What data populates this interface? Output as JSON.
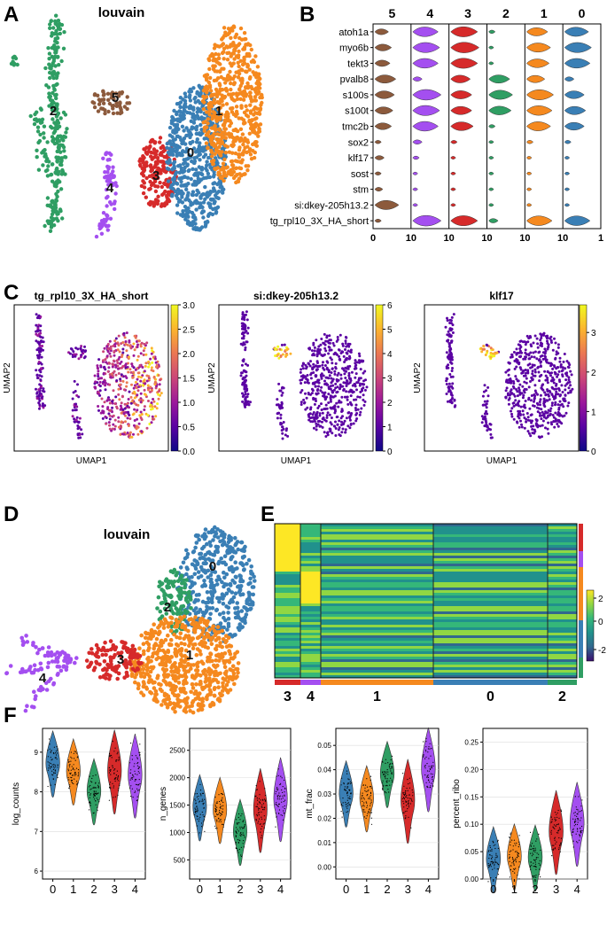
{
  "panel_letters": [
    "A",
    "B",
    "C",
    "D",
    "E",
    "F"
  ],
  "cluster_colors": {
    "0": "#3a7fb5",
    "1": "#f5891f",
    "2": "#2f9e63",
    "3": "#d62a2a",
    "4": "#a44ff0",
    "5": "#8c5a3c"
  },
  "chart_data": [
    {
      "panel": "A",
      "type": "scatter",
      "title": "louvain",
      "clusters": [
        "0",
        "1",
        "2",
        "3",
        "4",
        "5"
      ]
    },
    {
      "panel": "B",
      "type": "violin",
      "cluster_order": [
        "5",
        "4",
        "3",
        "2",
        "1",
        "0"
      ],
      "genes": [
        "atoh1a",
        "myo6b",
        "tekt3",
        "pvalb8",
        "s100s",
        "s100t",
        "tmc2b",
        "sox2",
        "klf17",
        "sost",
        "stm",
        "si:dkey-205h13.2",
        "tg_rpl10_3X_HA_short"
      ],
      "x_tick_labels": [
        "0",
        "10",
        "10",
        "10",
        "10",
        "10",
        "1"
      ],
      "expression_level": {
        "5": [
          0.35,
          0.45,
          0.4,
          0.6,
          0.55,
          0.5,
          0.45,
          0.1,
          0.2,
          0.1,
          0.15,
          0.7,
          0.1
        ],
        "4": [
          0.75,
          0.8,
          0.75,
          0.2,
          0.85,
          0.8,
          0.75,
          0.2,
          0.1,
          0.05,
          0.05,
          0.05,
          0.85
        ],
        "3": [
          0.8,
          0.85,
          0.8,
          0.55,
          0.6,
          0.6,
          0.65,
          0.1,
          0.05,
          0.05,
          0.05,
          0.05,
          0.8
        ],
        "2": [
          0.1,
          0.05,
          0.05,
          0.6,
          0.7,
          0.65,
          0.1,
          0.05,
          0.05,
          0.05,
          0.05,
          0.05,
          0.2
        ],
        "1": [
          0.6,
          0.7,
          0.65,
          0.5,
          0.8,
          0.75,
          0.7,
          0.1,
          0.05,
          0.05,
          0.05,
          0.05,
          0.75
        ],
        "0": [
          0.7,
          0.8,
          0.75,
          0.2,
          0.55,
          0.6,
          0.55,
          0.1,
          0.05,
          0.05,
          0.05,
          0.05,
          0.75
        ]
      }
    },
    {
      "panel": "C",
      "type": "scatter",
      "title": "tg_rpl10_3X_HA_short",
      "xlabel": "UMAP1",
      "ylabel": "UMAP2",
      "colorbar_ticks": [
        "0.0",
        "0.5",
        "1.0",
        "1.5",
        "2.0",
        "2.5",
        "3.0"
      ]
    },
    {
      "panel": "C",
      "type": "scatter",
      "title": "si:dkey-205h13.2",
      "xlabel": "UMAP1",
      "ylabel": "UMAP2",
      "colorbar_ticks": [
        "0",
        "1",
        "2",
        "3",
        "4",
        "5",
        "6"
      ]
    },
    {
      "panel": "C",
      "type": "scatter",
      "title": "klf17",
      "xlabel": "UMAP1",
      "ylabel": "UMAP2",
      "colorbar_ticks": [
        "0",
        "1",
        "2",
        "3"
      ]
    },
    {
      "panel": "D",
      "type": "scatter",
      "title": "louvain",
      "clusters": [
        "0",
        "1",
        "2",
        "3",
        "4"
      ]
    },
    {
      "panel": "E",
      "type": "heatmap",
      "group_labels": [
        "3",
        "4",
        "1",
        "0",
        "2"
      ],
      "colorbar_ticks": [
        "2",
        "0",
        "-2"
      ]
    },
    {
      "panel": "F",
      "type": "violin",
      "ylabel": "log_counts",
      "categories": [
        "0",
        "1",
        "2",
        "3",
        "4"
      ],
      "y_ticks": [
        "6",
        "7",
        "8",
        "9"
      ],
      "ylim": [
        5.8,
        9.6
      ],
      "median": [
        8.7,
        8.5,
        8.0,
        8.5,
        8.4
      ]
    },
    {
      "panel": "F",
      "type": "violin",
      "ylabel": "n_genes",
      "categories": [
        "0",
        "1",
        "2",
        "3",
        "4"
      ],
      "y_ticks": [
        "500",
        "1000",
        "1500",
        "2000",
        "2500"
      ],
      "ylim": [
        150,
        2900
      ],
      "median": [
        1450,
        1400,
        1000,
        1400,
        1600
      ]
    },
    {
      "panel": "F",
      "type": "violin",
      "ylabel": "mt_frac",
      "categories": [
        "0",
        "1",
        "2",
        "3",
        "4"
      ],
      "y_ticks": [
        "0.00",
        "0.01",
        "0.02",
        "0.03",
        "0.04",
        "0.05"
      ],
      "ylim": [
        -0.005,
        0.057
      ],
      "median": [
        0.03,
        0.028,
        0.038,
        0.027,
        0.04
      ]
    },
    {
      "panel": "F",
      "type": "violin",
      "ylabel": "percent_ribo",
      "categories": [
        "0",
        "1",
        "2",
        "3",
        "4"
      ],
      "y_ticks": [
        "0.00",
        "0.05",
        "0.10",
        "0.15",
        "0.20",
        "0.25"
      ],
      "ylim": [
        0.0,
        0.275
      ],
      "median": [
        0.035,
        0.04,
        0.038,
        0.085,
        0.1
      ]
    }
  ]
}
